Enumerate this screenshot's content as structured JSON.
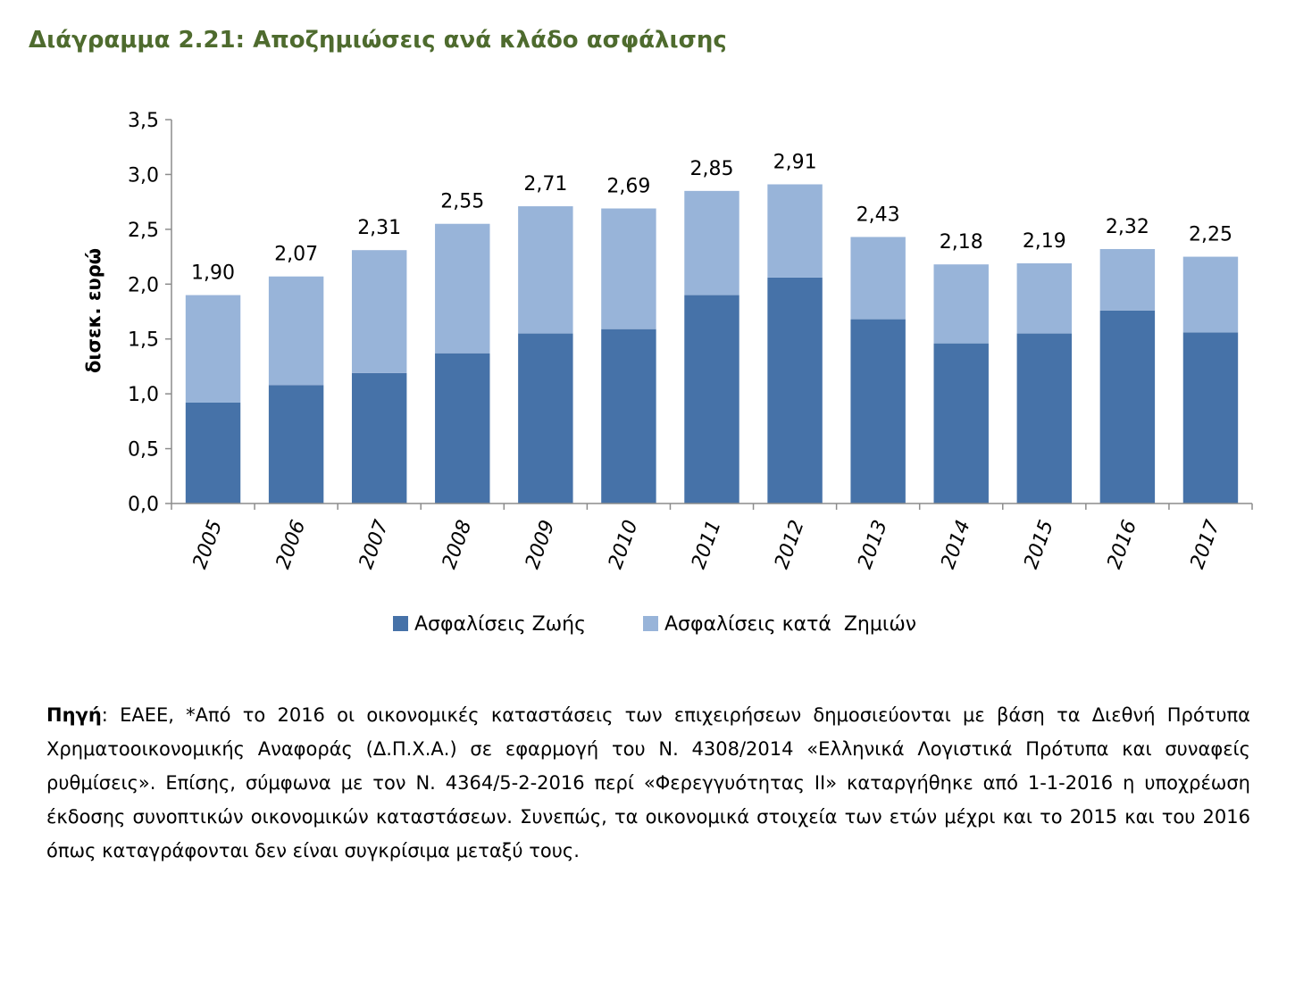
{
  "title": "Διάγραμμα 2.21: Αποζημιώσεις ανά κλάδο ασφάλισης",
  "colors": {
    "title": "#4e6b2e",
    "life": "#4672a8",
    "non_life": "#98b4d9",
    "axis": "#8c8c8c"
  },
  "chart_data": {
    "type": "bar",
    "stacked": true,
    "categories": [
      "2005",
      "2006",
      "2007",
      "2008",
      "2009",
      "2010",
      "2011",
      "2012",
      "2013",
      "2014",
      "2015",
      "2016",
      "2017"
    ],
    "series": [
      {
        "name": "Ασφαλίσεις Ζωής",
        "values": [
          0.92,
          1.08,
          1.19,
          1.37,
          1.55,
          1.59,
          1.9,
          2.06,
          1.68,
          1.46,
          1.55,
          1.76,
          1.56
        ]
      },
      {
        "name": "Ασφαλίσεις κατά  Ζημιών",
        "values": [
          0.98,
          0.99,
          1.12,
          1.18,
          1.16,
          1.1,
          0.95,
          0.85,
          0.75,
          0.72,
          0.64,
          0.56,
          0.69
        ]
      }
    ],
    "totals": [
      1.9,
      2.07,
      2.31,
      2.55,
      2.71,
      2.69,
      2.85,
      2.91,
      2.43,
      2.18,
      2.19,
      2.32,
      2.25
    ],
    "total_labels": [
      "1,90",
      "2,07",
      "2,31",
      "2,55",
      "2,71",
      "2,69",
      "2,85",
      "2,91",
      "2,43",
      "2,18",
      "2,19",
      "2,32",
      "2,25"
    ],
    "ylabel": "δισεκ. ευρώ",
    "xlabel": "",
    "ylim": [
      0,
      3.5
    ],
    "yticks": [
      0,
      0.5,
      1.0,
      1.5,
      2.0,
      2.5,
      3.0,
      3.5
    ],
    "ytick_labels": [
      "0,0",
      "0,5",
      "1,0",
      "1,5",
      "2,0",
      "2,5",
      "3,0",
      "3,5"
    ],
    "grid": false,
    "legend_position": "bottom"
  },
  "source": {
    "label": "Πηγή",
    "text": ": ΕΑΕΕ, *Από το 2016 οι οικονομικές καταστάσεις των επιχειρήσεων δημοσιεύονται με βάση τα Διεθνή Πρότυπα Χρηματοοικονομικής Αναφοράς (Δ.Π.Χ.Α.) σε εφαρμογή του Ν. 4308/2014 «Ελληνικά Λογιστικά Πρότυπα και συναφείς ρυθμίσεις». Επίσης, σύμφωνα με τον Ν. 4364/5-2-2016 περί «Φερεγγυότητας ΙΙ» καταργήθηκε από 1-1-2016 η υποχρέωση έκδοσης συνοπτικών οικονομικών καταστάσεων. Συνεπώς, τα οικονομικά στοιχεία των ετών μέχρι και το 2015 και του 2016 όπως καταγράφονται δεν είναι συγκρίσιμα μεταξύ τους."
  }
}
